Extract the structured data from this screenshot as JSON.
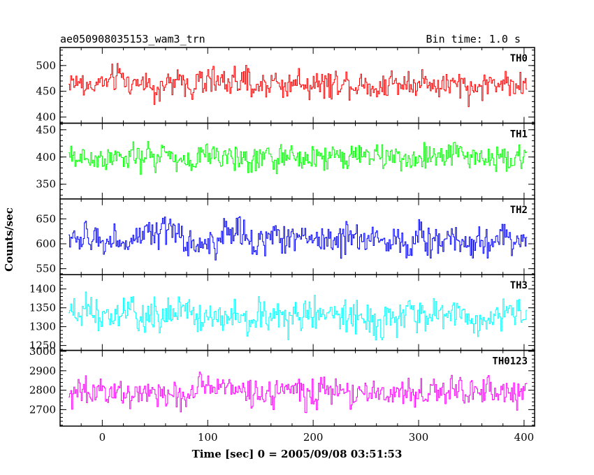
{
  "header": {
    "left": "ae050908035153_wam3_trn",
    "right": "Bin time: 1.0 s"
  },
  "chart_data": {
    "type": "line",
    "xlabel": "Time [sec] 0 = 2005/09/08 03:51:53",
    "ylabel": "Counts/sec",
    "xlim": [
      -40,
      410
    ],
    "xticks": [
      0,
      100,
      200,
      300,
      400
    ],
    "x_start": -32,
    "x_end": 402,
    "x_step": 1,
    "grid": false,
    "panels": [
      {
        "name": "TH0",
        "color": "#ff0000",
        "ylim": [
          388,
          535
        ],
        "yticks": [
          400,
          450,
          500
        ],
        "mean": 466,
        "amplitude": 22
      },
      {
        "name": "TH1",
        "color": "#00ff00",
        "ylim": [
          323,
          462
        ],
        "yticks": [
          350,
          400,
          450
        ],
        "mean": 400,
        "amplitude": 20
      },
      {
        "name": "TH2",
        "color": "#0000ff",
        "ylim": [
          538,
          690
        ],
        "yticks": [
          550,
          600,
          650
        ],
        "mean": 610,
        "amplitude": 25
      },
      {
        "name": "TH3",
        "color": "#00ffff",
        "ylim": [
          1237,
          1438
        ],
        "yticks": [
          1250,
          1300,
          1350,
          1400
        ],
        "mean": 1328,
        "amplitude": 35
      },
      {
        "name": "TH0123",
        "color": "#ff00ff",
        "ylim": [
          2615,
          3005
        ],
        "yticks": [
          2700,
          2800,
          2900,
          3000
        ],
        "mean": 2790,
        "amplitude": 60
      }
    ]
  }
}
